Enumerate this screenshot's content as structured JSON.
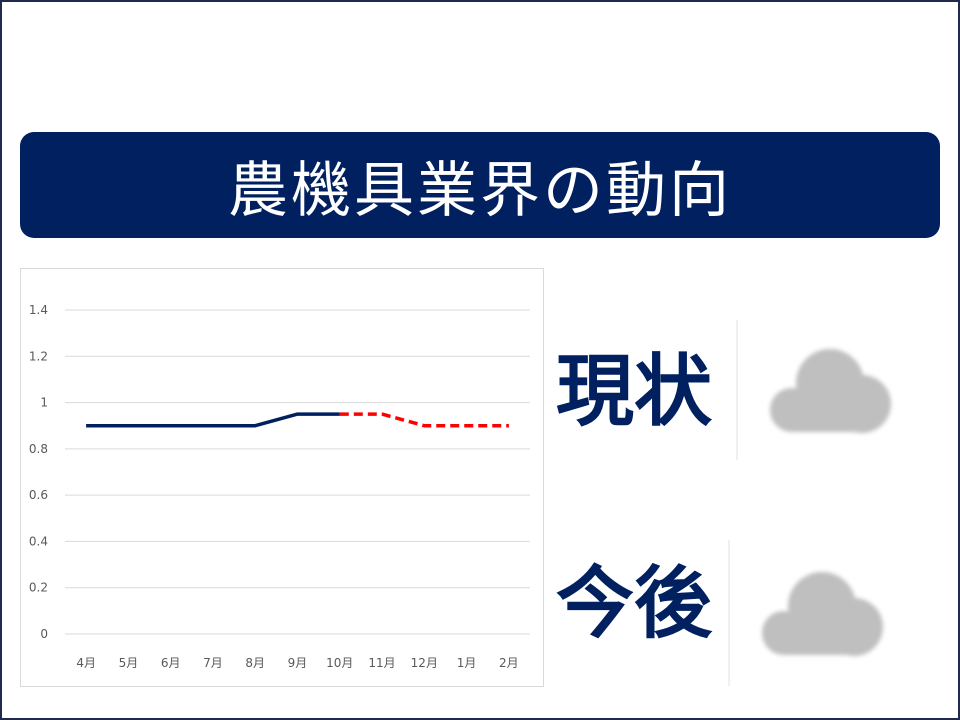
{
  "slide": {
    "title": "農機具業界の動向"
  },
  "status": [
    {
      "label": "現状",
      "icon": "cloud-icon"
    },
    {
      "label": "今後",
      "icon": "cloud-icon"
    }
  ],
  "colors": {
    "banner": "#002060",
    "accent_text": "#002060",
    "cloud": "#BFBFBF",
    "frame": "#1F2A52"
  },
  "chart_data": {
    "type": "line",
    "categories": [
      "4月",
      "5月",
      "6月",
      "7月",
      "8月",
      "9月",
      "10月",
      "11月",
      "12月",
      "1月",
      "2月"
    ],
    "series": [
      {
        "values": [
          0.9,
          0.9,
          0.9,
          0.9,
          0.9,
          0.95,
          0.95,
          null,
          null,
          null,
          null
        ],
        "dashed": false,
        "color": "#002060"
      },
      {
        "values": [
          null,
          null,
          null,
          null,
          null,
          null,
          0.95,
          0.95,
          0.9,
          0.9,
          0.9
        ],
        "dashed": true,
        "color": "#FF0000"
      }
    ],
    "y_ticks": [
      0,
      0.2,
      0.4,
      0.6,
      0.8,
      1,
      1.2,
      1.4
    ],
    "ylim": [
      0,
      1.4
    ],
    "grid": true,
    "legend": false
  }
}
